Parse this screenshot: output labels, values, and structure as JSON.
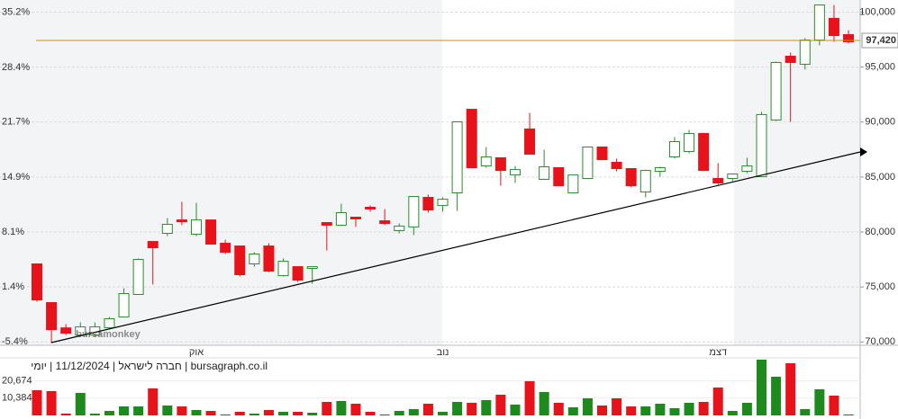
{
  "chart_data": [
    {
      "type": "candlestick",
      "categories": [
        null,
        null,
        null,
        null,
        null,
        null,
        null,
        null,
        null,
        null,
        null,
        "אוק",
        null,
        null,
        null,
        null,
        null,
        null,
        null,
        null,
        null,
        null,
        null,
        null,
        null,
        null,
        null,
        null,
        "נוב",
        null,
        null,
        null,
        null,
        null,
        null,
        null,
        null,
        null,
        null,
        null,
        null,
        null,
        null,
        null,
        null,
        null,
        null,
        "דצמ",
        null,
        null,
        null,
        null,
        null,
        null,
        null,
        null,
        null
      ],
      "open": [
        77100,
        73580,
        71280,
        70630,
        70630,
        71290,
        72270,
        74320,
        79140,
        79880,
        81100,
        79800,
        81100,
        78980,
        78730,
        77100,
        78730,
        76030,
        76850,
        76690,
        80860,
        80620,
        81350,
        82250,
        81020,
        80130,
        80460,
        83150,
        82410,
        83560,
        91160,
        86010,
        86750,
        85190,
        89370,
        84790,
        85850,
        83560,
        84870,
        87730,
        86340,
        85770,
        83640,
        85520,
        86830,
        87320,
        88960,
        84870,
        84870,
        85520,
        85030,
        90180,
        95990,
        95260,
        97460,
        99430,
        97950
      ],
      "high": [
        77100,
        73580,
        71620,
        71780,
        71780,
        72270,
        74890,
        77590,
        79140,
        81270,
        82740,
        82660,
        81100,
        79300,
        78730,
        78160,
        78980,
        77590,
        76850,
        76850,
        80860,
        82580,
        81350,
        82420,
        82090,
        80780,
        83230,
        83400,
        83150,
        90020,
        91160,
        87730,
        86750,
        86010,
        90840,
        87480,
        85850,
        85190,
        87730,
        87730,
        86670,
        85770,
        85680,
        85930,
        88630,
        89280,
        89040,
        86260,
        85280,
        86750,
        90920,
        95500,
        96320,
        97630,
        100650,
        100650,
        98360
      ],
      "low": [
        73670,
        69900,
        70630,
        70470,
        70470,
        71130,
        72270,
        74320,
        75220,
        79630,
        80620,
        79630,
        78900,
        78000,
        75960,
        76850,
        76360,
        75950,
        75460,
        75300,
        78320,
        80540,
        80460,
        81840,
        80620,
        79880,
        79720,
        81760,
        81840,
        81920,
        85850,
        85850,
        84210,
        84460,
        87080,
        84790,
        84210,
        83560,
        84870,
        86580,
        85520,
        84050,
        83150,
        85020,
        86670,
        87160,
        85520,
        84290,
        84620,
        85350,
        85030,
        90100,
        90020,
        94770,
        96970,
        97300,
        97140
      ],
      "close": [
        73820,
        71120,
        70800,
        71370,
        71370,
        72110,
        74400,
        77510,
        78570,
        80700,
        80940,
        81100,
        78900,
        78160,
        76120,
        78000,
        76440,
        77340,
        75620,
        76850,
        80620,
        81760,
        81190,
        82090,
        80780,
        80540,
        83230,
        82000,
        82980,
        90020,
        85850,
        86830,
        85600,
        85680,
        87080,
        85930,
        84210,
        85190,
        87730,
        86580,
        85770,
        84210,
        85600,
        85850,
        88220,
        88960,
        85600,
        84460,
        85280,
        86010,
        90680,
        95420,
        95420,
        97460,
        100650,
        97870,
        97300
      ],
      "up_color": "#2e8b2e",
      "down_color": "#e8121b",
      "ylim": [
        69700,
        101100
      ],
      "yticks": [
        {
          "value": 100000,
          "label": "100,000"
        },
        {
          "value": 95000,
          "label": "95,000"
        },
        {
          "value": 90000,
          "label": "90,000"
        },
        {
          "value": 85000,
          "label": "85,000"
        },
        {
          "value": 80000,
          "label": "80,000"
        },
        {
          "value": 75000,
          "label": "75,000"
        },
        {
          "value": 70000,
          "label": "70,000"
        }
      ],
      "y2lim": [
        -5.81,
        36.69
      ],
      "y2ticks": [
        {
          "value": 35.2,
          "label": "35.2%"
        },
        {
          "value": 28.4,
          "label": "28.4%"
        },
        {
          "value": 21.7,
          "label": "21.7%"
        },
        {
          "value": 14.9,
          "label": "14.9%"
        },
        {
          "value": 8.1,
          "label": "8.1%"
        },
        {
          "value": 1.4,
          "label": "1.4%"
        },
        {
          "value": -5.4,
          "label": "-5.4%"
        }
      ],
      "hline": {
        "value": 97420,
        "label": "97,420",
        "color": "#c8940a"
      },
      "watermark": "bursamonkey",
      "footer": "bursagraph.co.il | חברה לישראל | 11/12/2024 | יומי",
      "grid": true
    },
    {
      "type": "bar",
      "values": [
        15150,
        14600,
        1080,
        13530,
        1080,
        2700,
        5410,
        5410,
        16230,
        5950,
        5410,
        3250,
        2700,
        540,
        2160,
        1080,
        3250,
        2160,
        2160,
        1620,
        8110,
        8660,
        7030,
        2160,
        540,
        2700,
        3790,
        7030,
        2160,
        8110,
        7570,
        9200,
        12440,
        6490,
        20560,
        14070,
        7570,
        4870,
        10280,
        5950,
        10280,
        5410,
        5410,
        7030,
        4330,
        7570,
        8110,
        16770,
        2700,
        7570,
        33540,
        23260,
        31380,
        3790,
        15690,
        11900,
        540
      ],
      "ylim": [
        0,
        34600
      ],
      "yticks": [
        {
          "value": 20674,
          "label": "20,674"
        },
        {
          "value": 10384,
          "label": "10,384"
        }
      ]
    }
  ]
}
